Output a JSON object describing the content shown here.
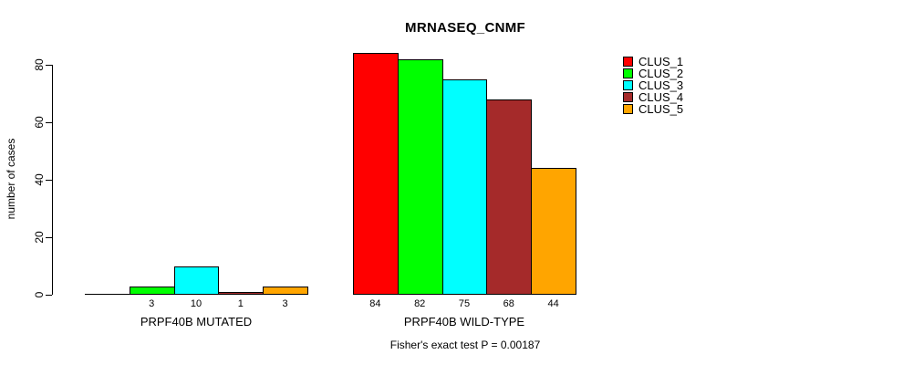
{
  "title": "MRNASEQ_CNMF",
  "annotation": "Fisher's exact test P = 0.00187",
  "chart_data": {
    "type": "bar",
    "title": "MRNASEQ_CNMF",
    "ylabel": "number of cases",
    "xlabel": "",
    "ylim": [
      0,
      80
    ],
    "yticks": [
      0,
      20,
      40,
      60,
      80
    ],
    "grid": false,
    "legend_position": "right",
    "categories": [
      "PRPF40B MUTATED",
      "PRPF40B WILD-TYPE"
    ],
    "series": [
      {
        "name": "CLUS_1",
        "color": "#ff0000",
        "values": [
          0,
          84
        ]
      },
      {
        "name": "CLUS_2",
        "color": "#00ff00",
        "values": [
          3,
          82
        ]
      },
      {
        "name": "CLUS_3",
        "color": "#00ffff",
        "values": [
          10,
          75
        ]
      },
      {
        "name": "CLUS_4",
        "color": "#a52a2a",
        "values": [
          1,
          68
        ]
      },
      {
        "name": "CLUS_5",
        "color": "#ffa500",
        "values": [
          3,
          44
        ]
      }
    ],
    "bar_value_labels": [
      [
        "",
        "3",
        "10",
        "1",
        "3"
      ],
      [
        "84",
        "82",
        "75",
        "68",
        "44"
      ]
    ],
    "annotation": "Fisher's exact test P = 0.00187"
  }
}
